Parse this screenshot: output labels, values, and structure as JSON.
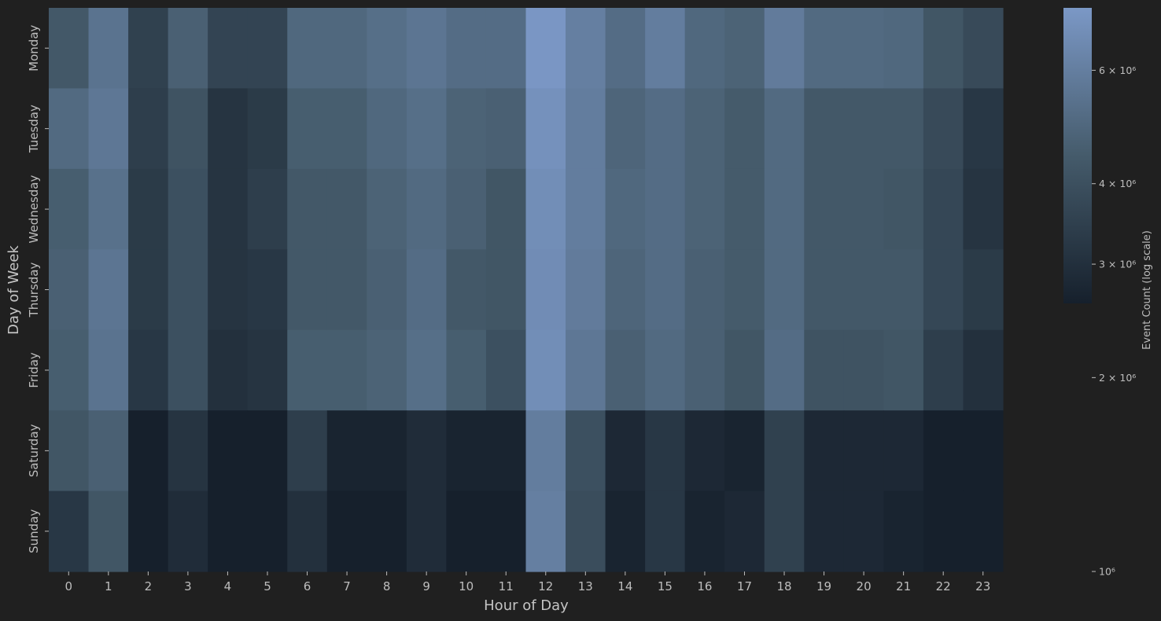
{
  "chart_data": {
    "type": "heatmap",
    "title": "",
    "xlabel": "Hour of Day",
    "ylabel": "Day of Week",
    "x_categories": [
      "0",
      "1",
      "2",
      "3",
      "4",
      "5",
      "6",
      "7",
      "8",
      "9",
      "10",
      "11",
      "12",
      "13",
      "14",
      "15",
      "16",
      "17",
      "18",
      "19",
      "20",
      "21",
      "22",
      "23"
    ],
    "y_categories": [
      "Monday",
      "Tuesday",
      "Wednesday",
      "Thursday",
      "Friday",
      "Saturday",
      "Sunday"
    ],
    "values": [
      [
        4400000,
        5500000,
        3600000,
        4700000,
        3700000,
        3700000,
        5000000,
        5000000,
        5300000,
        5600000,
        5200000,
        5200000,
        7400000,
        6100000,
        5200000,
        6000000,
        5000000,
        4800000,
        5900000,
        5100000,
        5100000,
        5000000,
        4300000,
        3900000
      ],
      [
        5100000,
        5700000,
        3500000,
        4200000,
        3200000,
        3400000,
        4600000,
        4600000,
        5000000,
        5300000,
        4800000,
        4700000,
        7100000,
        6000000,
        4900000,
        5200000,
        4800000,
        4500000,
        5100000,
        4400000,
        4400000,
        4400000,
        3900000,
        3300000
      ],
      [
        4600000,
        5400000,
        3400000,
        4100000,
        3200000,
        3500000,
        4400000,
        4400000,
        4800000,
        5100000,
        4700000,
        4300000,
        6900000,
        6000000,
        5000000,
        5200000,
        4800000,
        4500000,
        5100000,
        4400000,
        4400000,
        4300000,
        3800000,
        3200000
      ],
      [
        4700000,
        5600000,
        3400000,
        4100000,
        3200000,
        3300000,
        4400000,
        4400000,
        4700000,
        5200000,
        4400000,
        4300000,
        6800000,
        5900000,
        4900000,
        5200000,
        4700000,
        4500000,
        5100000,
        4400000,
        4400000,
        4400000,
        3800000,
        3400000
      ],
      [
        4600000,
        5500000,
        3300000,
        4100000,
        3100000,
        3200000,
        4600000,
        4600000,
        4800000,
        5300000,
        4600000,
        4100000,
        6900000,
        5700000,
        4700000,
        5100000,
        4700000,
        4300000,
        5200000,
        4200000,
        4200000,
        4300000,
        3500000,
        3100000
      ],
      [
        4300000,
        4700000,
        2600000,
        3200000,
        2500000,
        2600000,
        3500000,
        2800000,
        2800000,
        3000000,
        2800000,
        2800000,
        6000000,
        4100000,
        2900000,
        3300000,
        2900000,
        2800000,
        3600000,
        2900000,
        2900000,
        2900000,
        2600000,
        2300000
      ],
      [
        3300000,
        4300000,
        2400000,
        3000000,
        2500000,
        2500000,
        3100000,
        2600000,
        2700000,
        3000000,
        2700000,
        2700000,
        6100000,
        4000000,
        2800000,
        3300000,
        2800000,
        2900000,
        3600000,
        2900000,
        2900000,
        2800000,
        2700000,
        2600000
      ]
    ],
    "scale": "log",
    "colorbar": {
      "label": "Event Count (log scale)",
      "min": 1000000,
      "max": 7500000,
      "cmap_min_value": 2700000,
      "ticks": [
        {
          "value": 1000000,
          "label": "10⁶"
        },
        {
          "value": 2000000,
          "label": "2 × 10⁶"
        },
        {
          "value": 3000000,
          "label": "3 × 10⁶"
        },
        {
          "value": 4000000,
          "label": "4 × 10⁶"
        },
        {
          "value": 6000000,
          "label": "6 × 10⁶"
        }
      ]
    },
    "colors": {
      "low": "#16202c",
      "mid": "#455b6b",
      "high": "#7b98c6",
      "background": "#202020"
    }
  }
}
